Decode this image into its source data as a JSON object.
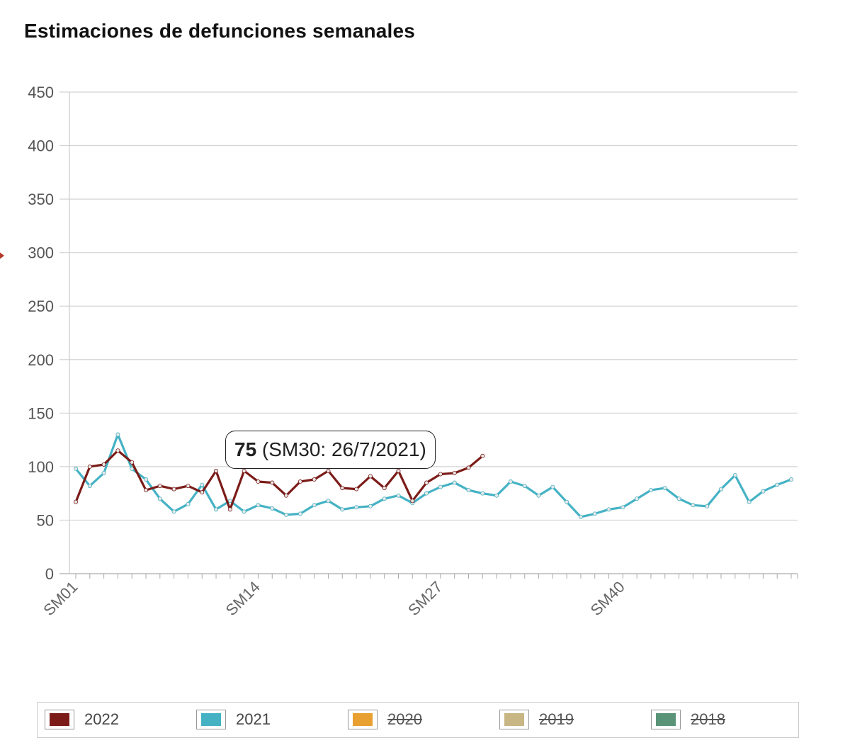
{
  "title": "Estimaciones de defunciones semanales",
  "tooltip": {
    "value": "75",
    "detail": " (SM30: 26/7/2021)"
  },
  "legend": [
    {
      "label": "2022",
      "color": "#7b1c18",
      "visible": true
    },
    {
      "label": "2021",
      "color": "#45b2c4",
      "visible": true
    },
    {
      "label": "2020",
      "color": "#e8a030",
      "visible": false
    },
    {
      "label": "2019",
      "color": "#c8b684",
      "visible": false
    },
    {
      "label": "2018",
      "color": "#5a9478",
      "visible": false
    }
  ],
  "chart_data": {
    "type": "line",
    "title": "Estimaciones de defunciones semanales",
    "xlabel": "",
    "ylabel": "",
    "ylim": [
      0,
      450
    ],
    "yticks": [
      0,
      50,
      100,
      150,
      200,
      250,
      300,
      350,
      400,
      450
    ],
    "xtick_labels": [
      "SM01",
      "SM14",
      "SM27",
      "SM40"
    ],
    "weeks": 52,
    "grid": true,
    "legend_position": "bottom",
    "series": [
      {
        "name": "2022",
        "color": "#7b1c18",
        "values": [
          67,
          100,
          102,
          115,
          104,
          78,
          82,
          79,
          82,
          76,
          96,
          60,
          96,
          86,
          85,
          73,
          86,
          88,
          96,
          80,
          79,
          91,
          80,
          96,
          68,
          85,
          93,
          94,
          99,
          110
        ]
      },
      {
        "name": "2021",
        "color": "#45b2c4",
        "values": [
          98,
          82,
          94,
          130,
          98,
          88,
          70,
          58,
          65,
          83,
          60,
          68,
          58,
          64,
          61,
          55,
          56,
          64,
          68,
          60,
          62,
          63,
          70,
          73,
          66,
          75,
          81,
          85,
          78,
          75,
          73,
          86,
          82,
          73,
          81,
          67,
          53,
          56,
          60,
          62,
          70,
          78,
          80,
          70,
          64,
          63,
          79,
          92,
          67,
          77,
          83,
          88
        ]
      }
    ]
  }
}
